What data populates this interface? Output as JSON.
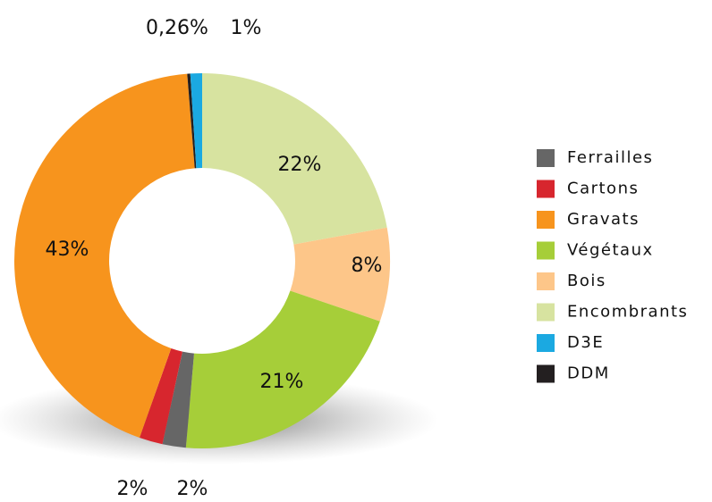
{
  "chart_data": {
    "type": "donut",
    "categories": [
      "Encombrants",
      "Bois",
      "Végétaux",
      "Ferrailles",
      "Cartons",
      "Gravats",
      "DDM",
      "D3E"
    ],
    "values": [
      22,
      8,
      21,
      2,
      2,
      43,
      0.26,
      1
    ],
    "value_labels": [
      "22%",
      "8%",
      "21%",
      "2%",
      "2%",
      "43%",
      "0,26%",
      "1%"
    ],
    "colors": [
      "#d7e3a0",
      "#fdc689",
      "#a6ce39",
      "#666666",
      "#d7262e",
      "#f7941d",
      "#231f20",
      "#1ba9e1"
    ],
    "legend": "right"
  }
}
